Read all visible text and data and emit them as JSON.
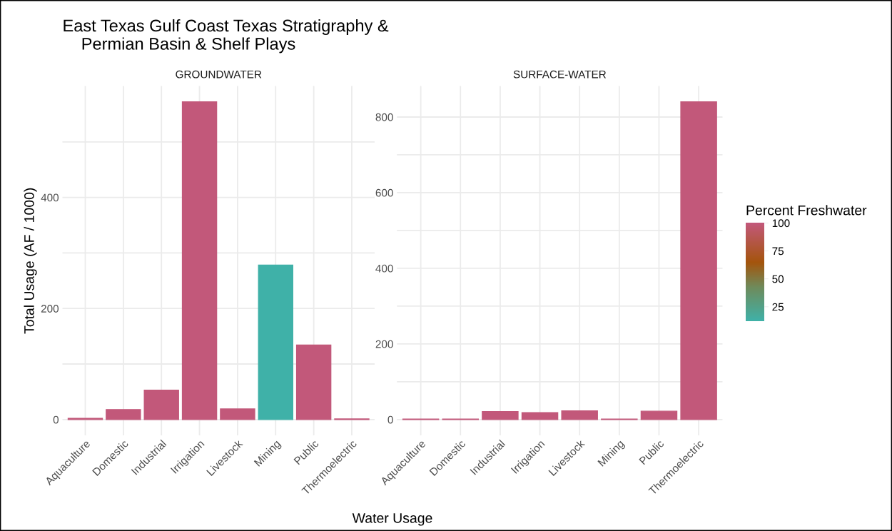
{
  "chart_data": [
    {
      "type": "bar",
      "title": "East Texas Gulf Coast Texas Stratigraphy &\n    Permian Basin & Shelf Plays",
      "subtitle": "GROUNDWATER",
      "xlabel": "Water Usage",
      "ylabel": "Total Usage (AF / 1000)",
      "clabel": "Percent Freshwater",
      "categories": [
        "Aquaculture",
        "Domestic",
        "Industrial",
        "Irrigation",
        "Livestock",
        "Mining",
        "Public",
        "Thermoelectric"
      ],
      "values": [
        2,
        18,
        53,
        572,
        19,
        278,
        134,
        1
      ],
      "cvalues": [
        100,
        100,
        100,
        100,
        100,
        12,
        100,
        100
      ],
      "clim": [
        12,
        100
      ],
      "cticks": [
        25,
        50,
        75,
        100
      ],
      "ylim": [
        -28.6,
        600.6
      ],
      "yticks": [
        0,
        {
          "value": 100,
          "label": null
        },
        200,
        {
          "value": 300,
          "label": null
        },
        400,
        {
          "value": 500,
          "label": null
        }
      ],
      "grid": true
    },
    {
      "type": "bar",
      "subtitle": "SURFACE-WATER",
      "categories": [
        "Aquaculture",
        "Domestic",
        "Industrial",
        "Irrigation",
        "Livestock",
        "Mining",
        "Public",
        "Thermoelectric"
      ],
      "values": [
        1,
        1,
        21,
        18,
        23,
        1,
        22,
        840
      ],
      "colors": [
        "#c2587a",
        "#c2587a",
        "#c2587a",
        "#c2587a",
        "#c2587a",
        "#c2587a",
        "#c2587a",
        "#c2587a"
      ],
      "ylim": [
        -42,
        882
      ],
      "yticks": [
        0,
        {
          "value": 100,
          "label": null
        },
        200,
        {
          "value": 300,
          "label": null
        },
        400,
        {
          "value": 500,
          "label": null
        },
        600,
        {
          "value": 700,
          "label": null
        },
        800
      ],
      "grid": true
    }
  ]
}
